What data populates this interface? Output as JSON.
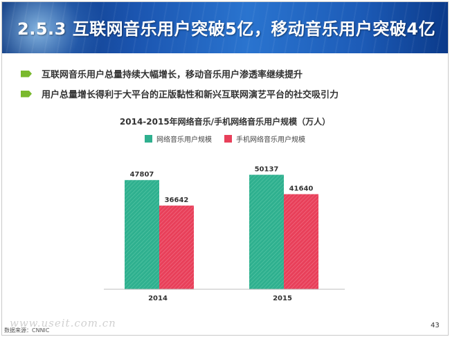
{
  "header": {
    "title": "2.5.3 互联网音乐用户突破5亿，移动音乐用户突破4亿"
  },
  "bullets": [
    "互联网音乐用户总量持续大幅增长，移动音乐用户渗透率继续提升",
    "用户总量增长得利于大平台的正版黏性和新兴互联网演艺平台的社交吸引力"
  ],
  "chart_data": {
    "type": "bar",
    "title": "2014-2015年网络音乐/手机网络音乐用户规模（万人）",
    "categories": [
      "2014",
      "2015"
    ],
    "series": [
      {
        "name": "网络音乐用户规模",
        "values": [
          47807,
          50137
        ],
        "color": "#2fb08f"
      },
      {
        "name": "手机网络音乐用户规模",
        "values": [
          36642,
          41640
        ],
        "color": "#e8405a"
      }
    ],
    "ylim": [
      0,
      60000
    ],
    "xlabel": "",
    "ylabel": "",
    "grid": false,
    "legend_position": "top"
  },
  "footer": {
    "source": "数据来源：CNNIC",
    "watermark": "www.useit.com.cn",
    "page_number": "43"
  }
}
